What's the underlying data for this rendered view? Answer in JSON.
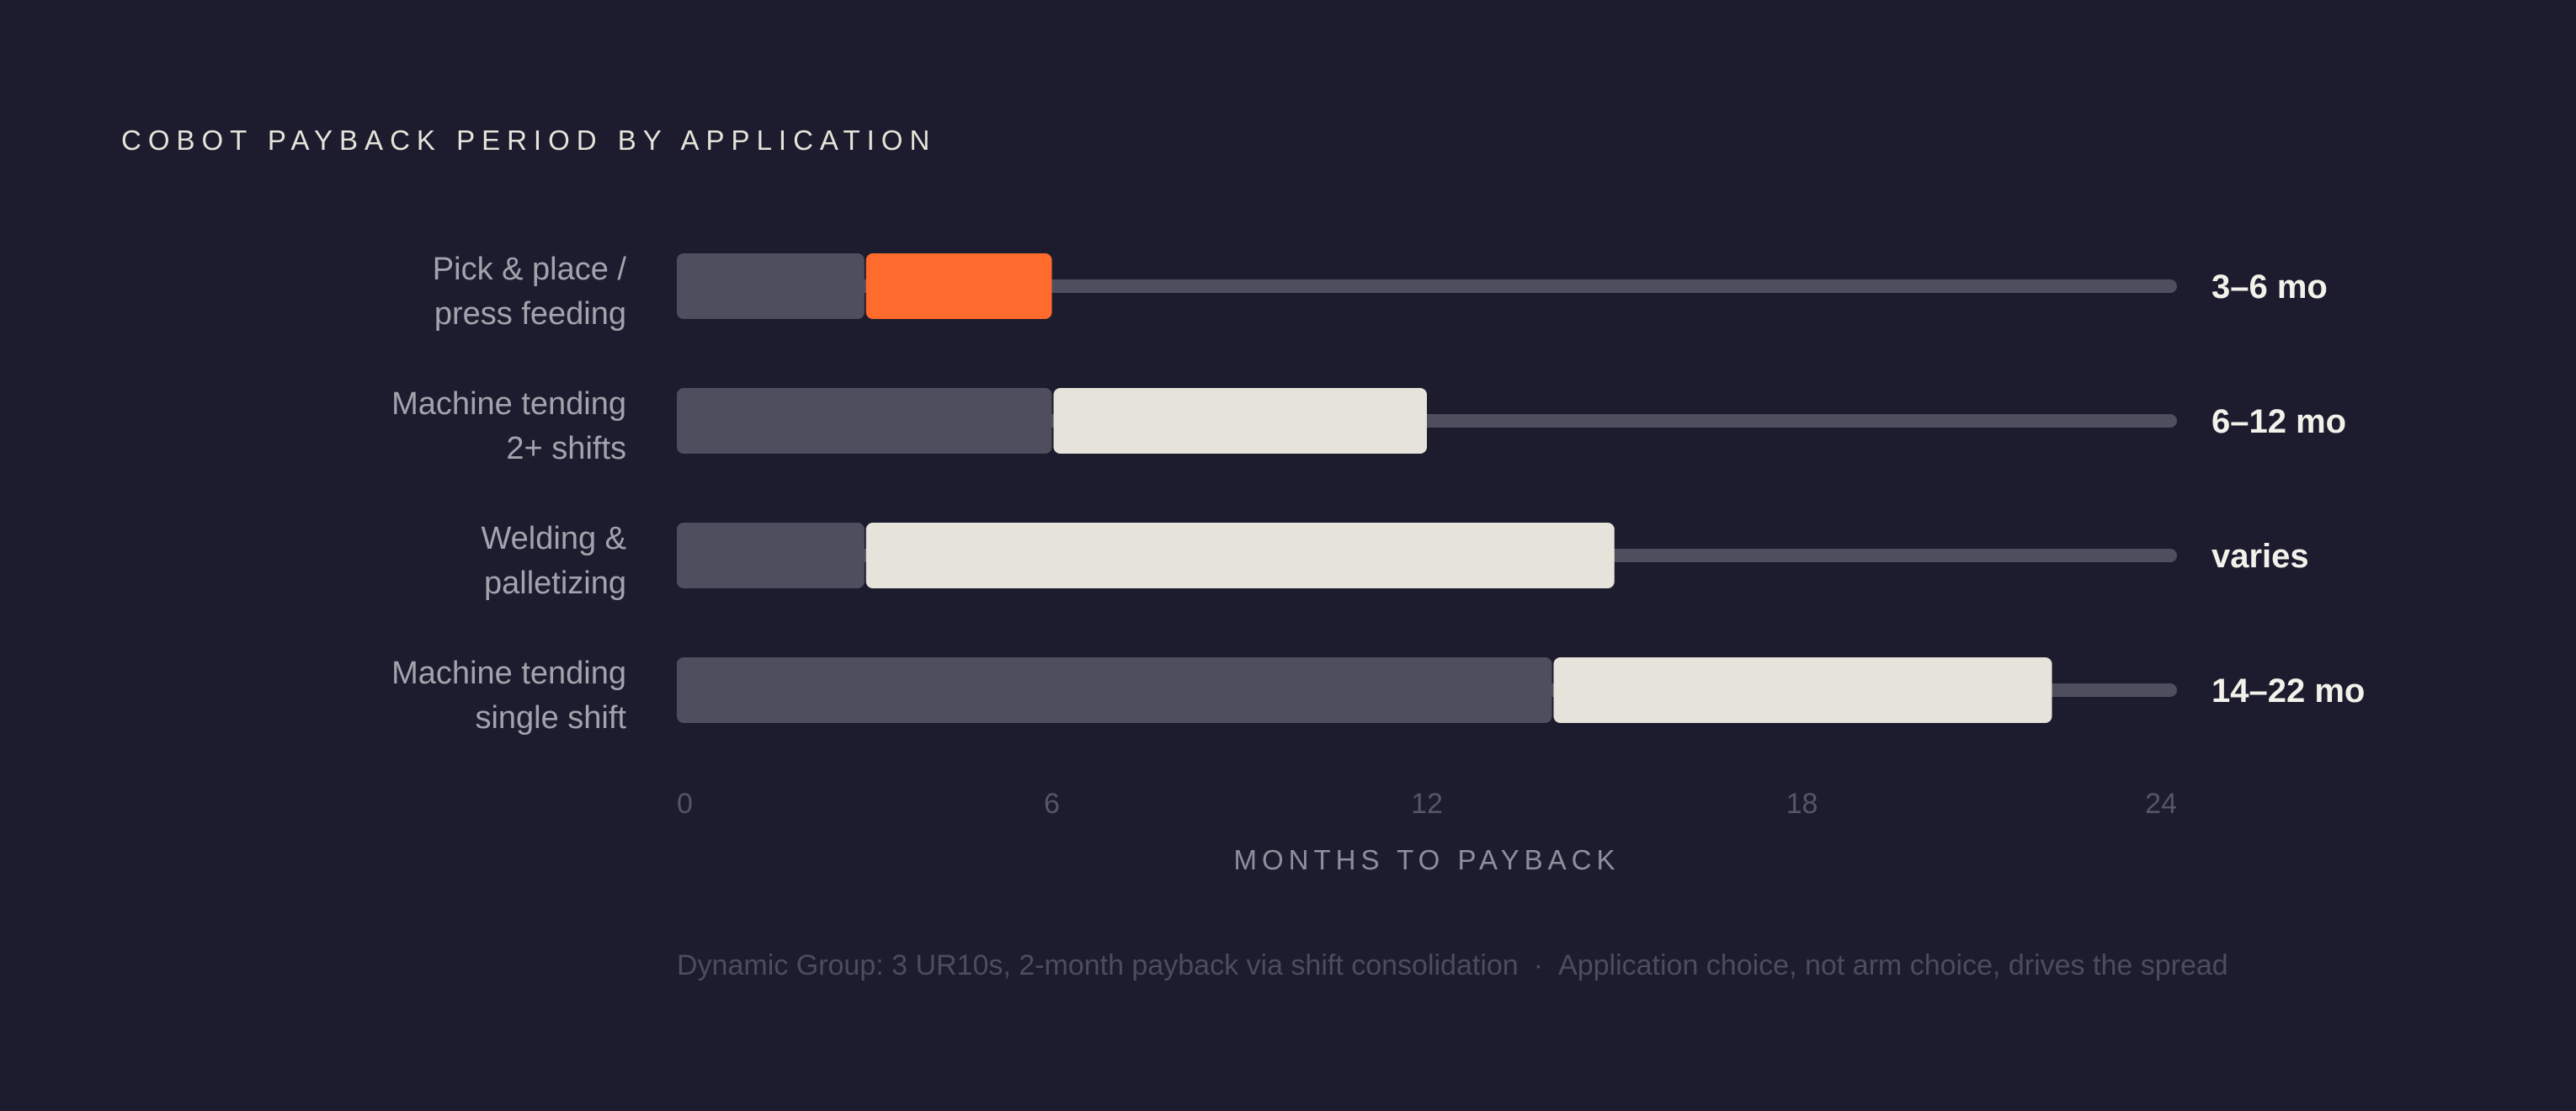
{
  "chart_data": {
    "type": "bar",
    "title": "COBOT PAYBACK PERIOD BY APPLICATION",
    "xlabel": "MONTHS TO PAYBACK",
    "xlim": [
      0,
      24
    ],
    "xticks": [
      "0",
      "6",
      "12",
      "18",
      "24"
    ],
    "categories": [
      [
        "Pick & place /",
        "press feeding"
      ],
      [
        "Machine tending",
        "2+ shifts"
      ],
      [
        "Welding &",
        "palletizing"
      ],
      [
        "Machine tending",
        "single shift"
      ]
    ],
    "ranges": [
      {
        "start": 3,
        "end": 6
      },
      {
        "start": 6,
        "end": 12
      },
      {
        "start": 3,
        "end": 15
      },
      {
        "start": 14,
        "end": 22
      }
    ],
    "value_labels": [
      "3–6 mo",
      "6–12 mo",
      "varies",
      "14–22 mo"
    ],
    "highlight_index": 0,
    "colors": {
      "background": "#1c1c2e",
      "track": "#4e4e5e",
      "range": "#e6e4da",
      "highlight": "#ff6b2c",
      "label": "#a3a3ae",
      "tick": "#55556a",
      "value": "#f2f1ea"
    }
  },
  "footnote": {
    "left": "Dynamic Group: 3 UR10s, 2-month payback via shift consolidation",
    "separator": "·",
    "right": "Application choice, not arm choice, drives the spread"
  }
}
